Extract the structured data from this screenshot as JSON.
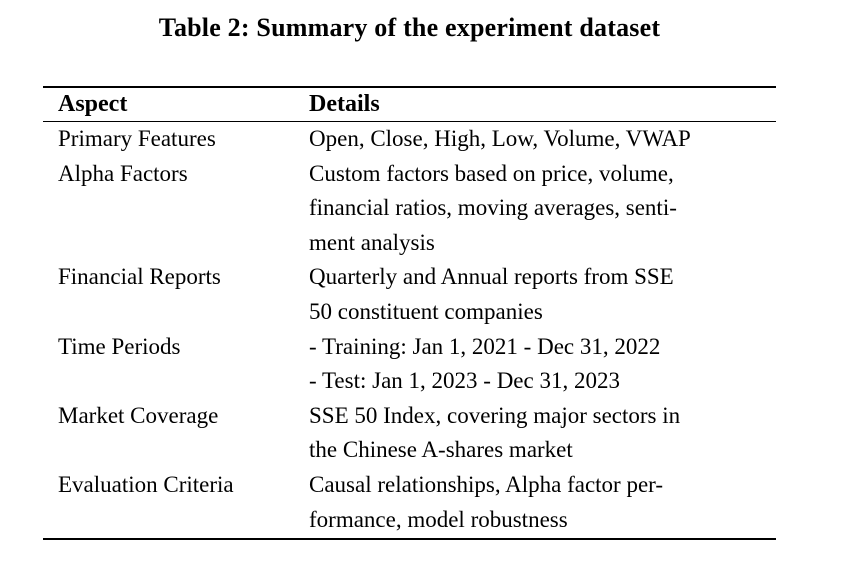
{
  "title": "Table 2: Summary of the experiment dataset",
  "colors": {
    "background": "#ffffff",
    "text": "#000000",
    "rule": "#000000"
  },
  "table": {
    "headers": {
      "aspect": "Aspect",
      "details": "Details"
    },
    "rows": [
      {
        "aspect": "Primary Features",
        "details": [
          "Open, Close, High, Low, Volume, VWAP"
        ]
      },
      {
        "aspect": "Alpha Factors",
        "details": [
          "Custom factors based on price, volume,",
          "financial ratios, moving averages, senti-",
          "ment analysis"
        ]
      },
      {
        "aspect": "Financial Reports",
        "details": [
          "Quarterly and Annual reports from SSE",
          "50 constituent companies"
        ]
      },
      {
        "aspect": "Time Periods",
        "details": [
          "- Training: Jan 1, 2021 - Dec 31, 2022",
          "- Test: Jan 1, 2023 - Dec 31, 2023"
        ]
      },
      {
        "aspect": "Market Coverage",
        "details": [
          "SSE 50 Index, covering major sectors in",
          "the Chinese A-shares market"
        ]
      },
      {
        "aspect": "Evaluation Criteria",
        "details": [
          "Causal relationships, Alpha factor per-",
          "formance, model robustness"
        ]
      }
    ]
  }
}
